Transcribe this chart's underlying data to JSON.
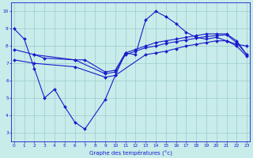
{
  "xlabel": "Graphe des températures (°c)",
  "bg_color": "#c8ecea",
  "line_color": "#1a1acc",
  "grid_color": "#99cccc",
  "x_ticks": [
    0,
    1,
    2,
    3,
    4,
    5,
    6,
    7,
    8,
    9,
    10,
    11,
    12,
    13,
    14,
    15,
    16,
    17,
    18,
    19,
    20,
    21,
    22,
    23
  ],
  "y_ticks": [
    3,
    4,
    5,
    6,
    7,
    8,
    9,
    10
  ],
  "xlim": [
    -0.3,
    23.3
  ],
  "ylim": [
    2.5,
    10.5
  ],
  "line1_x": [
    0,
    1,
    2,
    3,
    4,
    5,
    6,
    7,
    9,
    10,
    11,
    12,
    13,
    14,
    15,
    16,
    17,
    18,
    19,
    20,
    21,
    22,
    23
  ],
  "line1_y": [
    9.0,
    8.4,
    6.7,
    5.0,
    5.5,
    4.5,
    3.6,
    3.2,
    4.9,
    6.3,
    7.6,
    7.5,
    9.5,
    10.0,
    9.7,
    9.3,
    8.8,
    8.5,
    8.4,
    8.5,
    8.3,
    8.1,
    8.0
  ],
  "line2_x": [
    2,
    3,
    6,
    7,
    9,
    10,
    11,
    12,
    13,
    14,
    15,
    16,
    17,
    18,
    19,
    20,
    21,
    22,
    23
  ],
  "line2_y": [
    7.5,
    7.3,
    7.2,
    7.2,
    6.5,
    6.6,
    7.6,
    7.8,
    8.0,
    8.2,
    8.3,
    8.4,
    8.5,
    8.6,
    8.7,
    8.7,
    8.7,
    8.3,
    7.5
  ],
  "line3_x": [
    0,
    2,
    6,
    9,
    10,
    11,
    12,
    13,
    14,
    15,
    16,
    17,
    18,
    19,
    20,
    21,
    22,
    23
  ],
  "line3_y": [
    7.8,
    7.5,
    7.2,
    6.4,
    6.5,
    7.5,
    7.7,
    7.9,
    8.0,
    8.15,
    8.25,
    8.35,
    8.45,
    8.55,
    8.6,
    8.65,
    8.2,
    7.5
  ],
  "line4_x": [
    0,
    2,
    6,
    9,
    10,
    13,
    14,
    15,
    16,
    17,
    18,
    19,
    20,
    21,
    22,
    23
  ],
  "line4_y": [
    7.2,
    7.0,
    6.8,
    6.2,
    6.3,
    7.5,
    7.6,
    7.7,
    7.85,
    8.0,
    8.1,
    8.2,
    8.3,
    8.3,
    8.0,
    7.4
  ]
}
